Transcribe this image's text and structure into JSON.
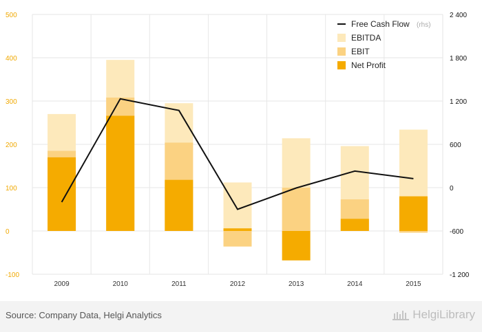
{
  "source_text": "Source: Company Data, Helgi Analytics",
  "brand": {
    "name": "HelgiLibrary"
  },
  "colors": {
    "ebitda": "#fde9bb",
    "ebit": "#fbd282",
    "net_profit": "#f5ab00",
    "fcf_line": "#111111",
    "left_axis_text": "#f0a800",
    "right_axis_text": "#111111",
    "grid": "#e6e6e6"
  },
  "chart_data": {
    "type": "bar",
    "categories": [
      "2009",
      "2010",
      "2011",
      "2012",
      "2013",
      "2014",
      "2015"
    ],
    "series": [
      {
        "name": "EBITDA",
        "type": "bar",
        "axis": "left",
        "values": [
          270,
          395,
          295,
          112,
          214,
          196,
          234
        ]
      },
      {
        "name": "EBIT",
        "type": "bar",
        "axis": "left",
        "values": [
          185,
          308,
          204,
          -36,
          100,
          73,
          -4
        ]
      },
      {
        "name": "Net Profit",
        "type": "bar",
        "axis": "left",
        "values": [
          170,
          266,
          118,
          6,
          -68,
          28,
          80
        ]
      },
      {
        "name": "Free Cash Flow",
        "name_suffix": "(rhs)",
        "type": "line",
        "axis": "right",
        "values": [
          -200,
          1230,
          1070,
          -300,
          -5,
          230,
          125
        ]
      }
    ],
    "left_axis": {
      "min": -100,
      "max": 500,
      "ticks": [
        "-100",
        "0",
        "100",
        "200",
        "300",
        "400",
        "500"
      ]
    },
    "right_axis": {
      "min": -1200,
      "max": 2400,
      "ticks": [
        "-1 200",
        "-600",
        "0",
        "600",
        "1 200",
        "1 800",
        "2 400"
      ]
    },
    "legend": {
      "placement": "top-right",
      "items": [
        {
          "label": "Free Cash Flow",
          "suffix": "(rhs)",
          "kind": "line"
        },
        {
          "label": "EBITDA",
          "suffix": "",
          "kind": "ebitda"
        },
        {
          "label": "EBIT",
          "suffix": "",
          "kind": "ebit"
        },
        {
          "label": "Net Profit",
          "suffix": "",
          "kind": "net_profit"
        }
      ]
    },
    "grid": true
  }
}
